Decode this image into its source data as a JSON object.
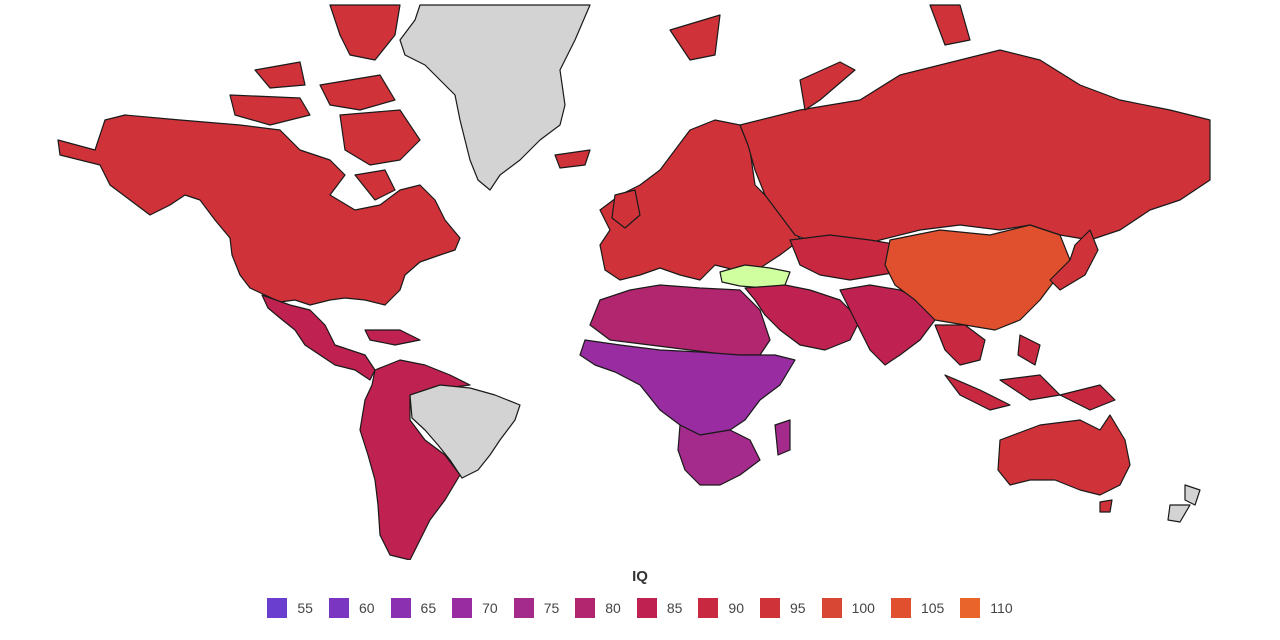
{
  "map": {
    "no_data_color": "#d3d3d3",
    "outline_color": "#1a1a1a",
    "highlight_color": "#cfff9e",
    "regions": [
      {
        "id": "greenland",
        "class": "nodata"
      },
      {
        "id": "north-america",
        "class": "95"
      },
      {
        "id": "central-america",
        "class": "85"
      },
      {
        "id": "brazil",
        "class": "nodata"
      },
      {
        "id": "south-america",
        "class": "85"
      },
      {
        "id": "europe",
        "class": "95"
      },
      {
        "id": "russia",
        "class": "95"
      },
      {
        "id": "turkey",
        "class": "highlight"
      },
      {
        "id": "middle-east",
        "class": "85"
      },
      {
        "id": "north-africa",
        "class": "80"
      },
      {
        "id": "sub-saharan-africa",
        "class": "70"
      },
      {
        "id": "southern-africa",
        "class": "75"
      },
      {
        "id": "central-asia",
        "class": "90"
      },
      {
        "id": "india",
        "class": "85"
      },
      {
        "id": "china",
        "class": "105"
      },
      {
        "id": "southeast-asia",
        "class": "88"
      },
      {
        "id": "australia",
        "class": "95"
      },
      {
        "id": "new-zealand",
        "class": "nodata"
      }
    ]
  },
  "legend": {
    "title": "IQ",
    "items": [
      {
        "label": "55",
        "color": "#6a3fd0"
      },
      {
        "label": "60",
        "color": "#7a36c0"
      },
      {
        "label": "65",
        "color": "#8a30b0"
      },
      {
        "label": "70",
        "color": "#982ca0"
      },
      {
        "label": "75",
        "color": "#a42a8c"
      },
      {
        "label": "80",
        "color": "#b22670"
      },
      {
        "label": "85",
        "color": "#bf2150"
      },
      {
        "label": "90",
        "color": "#c82840"
      },
      {
        "label": "95",
        "color": "#d0323a"
      },
      {
        "label": "100",
        "color": "#d84634"
      },
      {
        "label": "105",
        "color": "#e0502e"
      },
      {
        "label": "110",
        "color": "#e8642a"
      }
    ]
  }
}
